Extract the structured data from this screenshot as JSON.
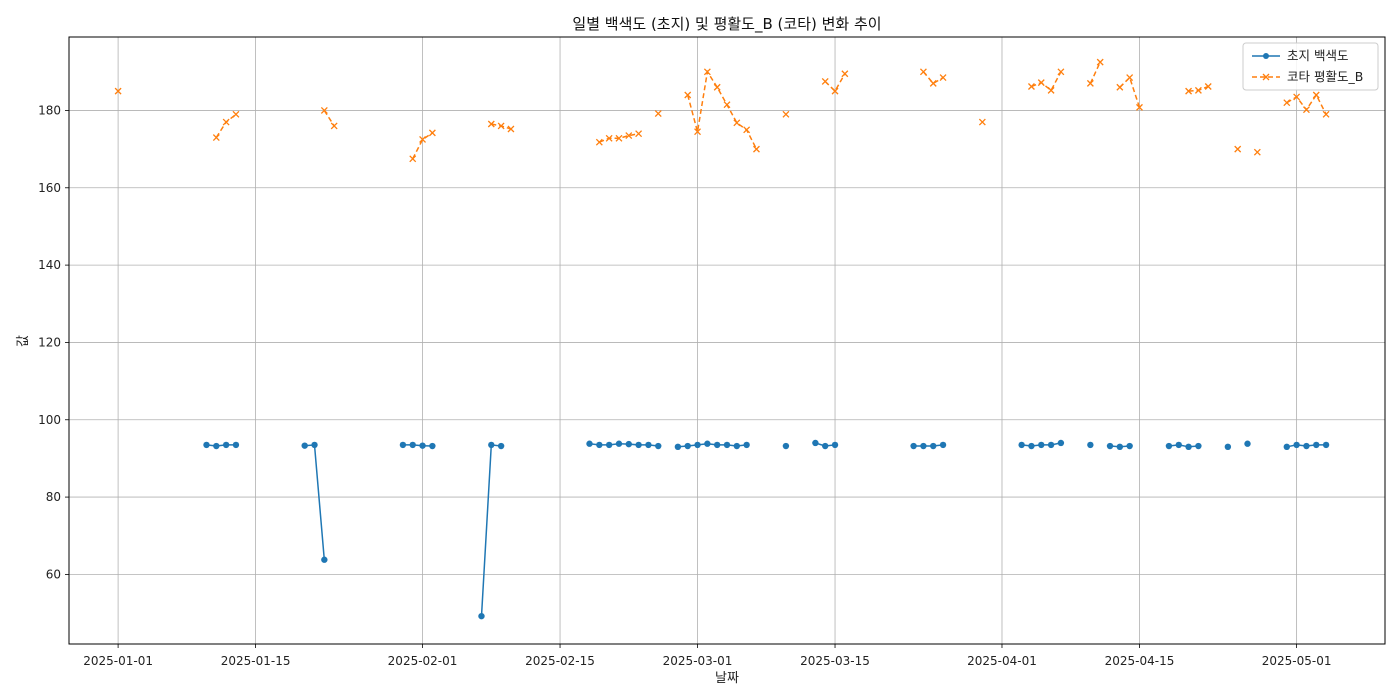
{
  "chart_data": {
    "type": "line",
    "title": "일별 백색도 (초지) 및 평활도_B (코타) 변화 추이",
    "xlabel": "날짜",
    "ylabel": "값",
    "x_tick_labels": [
      "2025-01-01",
      "2025-01-15",
      "2025-02-01",
      "2025-02-15",
      "2025-03-01",
      "2025-03-15",
      "2025-04-01",
      "2025-04-15",
      "2025-05-01"
    ],
    "x_ticks": [
      "2025-01-01",
      "2025-01-15",
      "2025-02-01",
      "2025-02-15",
      "2025-03-01",
      "2025-03-15",
      "2025-04-01",
      "2025-04-15",
      "2025-05-01"
    ],
    "x_range": [
      "2024-12-27",
      "2025-05-10"
    ],
    "y_ticks": [
      60,
      80,
      100,
      120,
      140,
      160,
      180
    ],
    "ylim": [
      42,
      199
    ],
    "grid": true,
    "legend_position": "top-right",
    "series": [
      {
        "name": "초지 백색도",
        "color": "#1f77b4",
        "style": "solid",
        "marker": "circle",
        "points": [
          [
            "2025-01-10",
            93.5
          ],
          [
            "2025-01-11",
            93.2
          ],
          [
            "2025-01-12",
            93.5
          ],
          [
            "2025-01-13",
            93.5
          ],
          [
            "2025-01-14",
            null
          ],
          [
            "2025-01-20",
            93.3
          ],
          [
            "2025-01-21",
            93.5
          ],
          [
            "2025-01-22",
            63.8
          ],
          [
            "2025-01-23",
            null
          ],
          [
            "2025-01-30",
            93.5
          ],
          [
            "2025-01-31",
            93.5
          ],
          [
            "2025-02-01",
            93.3
          ],
          [
            "2025-02-02",
            93.2
          ],
          [
            "2025-02-03",
            null
          ],
          [
            "2025-02-07",
            49.2
          ],
          [
            "2025-02-08",
            93.5
          ],
          [
            "2025-02-09",
            93.2
          ],
          [
            "2025-02-10",
            null
          ],
          [
            "2025-02-18",
            93.8
          ],
          [
            "2025-02-19",
            93.5
          ],
          [
            "2025-02-20",
            93.5
          ],
          [
            "2025-02-21",
            93.8
          ],
          [
            "2025-02-22",
            93.7
          ],
          [
            "2025-02-23",
            93.5
          ],
          [
            "2025-02-24",
            93.5
          ],
          [
            "2025-02-25",
            93.2
          ],
          [
            "2025-02-26",
            null
          ],
          [
            "2025-02-27",
            93.0
          ],
          [
            "2025-02-28",
            93.2
          ],
          [
            "2025-03-01",
            93.5
          ],
          [
            "2025-03-02",
            93.8
          ],
          [
            "2025-03-03",
            93.5
          ],
          [
            "2025-03-04",
            93.5
          ],
          [
            "2025-03-05",
            93.2
          ],
          [
            "2025-03-06",
            93.5
          ],
          [
            "2025-03-07",
            null
          ],
          [
            "2025-03-10",
            93.2
          ],
          [
            "2025-03-11",
            null
          ],
          [
            "2025-03-13",
            94.0
          ],
          [
            "2025-03-14",
            93.2
          ],
          [
            "2025-03-15",
            93.5
          ],
          [
            "2025-03-16",
            null
          ],
          [
            "2025-03-23",
            93.2
          ],
          [
            "2025-03-24",
            93.2
          ],
          [
            "2025-03-25",
            93.2
          ],
          [
            "2025-03-26",
            93.5
          ],
          [
            "2025-03-27",
            null
          ],
          [
            "2025-04-03",
            93.5
          ],
          [
            "2025-04-04",
            93.2
          ],
          [
            "2025-04-05",
            93.5
          ],
          [
            "2025-04-06",
            93.5
          ],
          [
            "2025-04-07",
            94.0
          ],
          [
            "2025-04-08",
            null
          ],
          [
            "2025-04-10",
            93.5
          ],
          [
            "2025-04-11",
            null
          ],
          [
            "2025-04-12",
            93.2
          ],
          [
            "2025-04-13",
            93.0
          ],
          [
            "2025-04-14",
            93.2
          ],
          [
            "2025-04-15",
            null
          ],
          [
            "2025-04-18",
            93.2
          ],
          [
            "2025-04-19",
            93.5
          ],
          [
            "2025-04-20",
            93.0
          ],
          [
            "2025-04-21",
            93.2
          ],
          [
            "2025-04-22",
            null
          ],
          [
            "2025-04-24",
            93.0
          ],
          [
            "2025-04-25",
            null
          ],
          [
            "2025-04-26",
            93.8
          ],
          [
            "2025-04-27",
            null
          ],
          [
            "2025-04-30",
            93.0
          ],
          [
            "2025-05-01",
            93.5
          ],
          [
            "2025-05-02",
            93.2
          ],
          [
            "2025-05-03",
            93.5
          ],
          [
            "2025-05-04",
            93.5
          ]
        ]
      },
      {
        "name": "코타 평활도_B",
        "color": "#ff7f0e",
        "style": "dashed",
        "marker": "x",
        "points": [
          [
            "2025-01-01",
            185.0
          ],
          [
            "2025-01-02",
            null
          ],
          [
            "2025-01-11",
            173.0
          ],
          [
            "2025-01-12",
            177.0
          ],
          [
            "2025-01-13",
            179.0
          ],
          [
            "2025-01-14",
            null
          ],
          [
            "2025-01-22",
            180.0
          ],
          [
            "2025-01-23",
            176.0
          ],
          [
            "2025-01-24",
            null
          ],
          [
            "2025-01-31",
            167.5
          ],
          [
            "2025-02-01",
            172.5
          ],
          [
            "2025-02-02",
            174.2
          ],
          [
            "2025-02-03",
            null
          ],
          [
            "2025-02-08",
            176.5
          ],
          [
            "2025-02-09",
            176.0
          ],
          [
            "2025-02-10",
            175.2
          ],
          [
            "2025-02-11",
            null
          ],
          [
            "2025-02-19",
            171.8
          ],
          [
            "2025-02-20",
            172.8
          ],
          [
            "2025-02-21",
            172.8
          ],
          [
            "2025-02-22",
            173.5
          ],
          [
            "2025-02-23",
            174.0
          ],
          [
            "2025-02-24",
            null
          ],
          [
            "2025-02-25",
            179.2
          ],
          [
            "2025-02-26",
            null
          ],
          [
            "2025-02-28",
            184.0
          ],
          [
            "2025-03-01",
            174.5
          ],
          [
            "2025-03-02",
            190.0
          ],
          [
            "2025-03-03",
            186.0
          ],
          [
            "2025-03-04",
            181.5
          ],
          [
            "2025-03-05",
            176.8
          ],
          [
            "2025-03-06",
            175.0
          ],
          [
            "2025-03-07",
            170.0
          ],
          [
            "2025-03-08",
            null
          ],
          [
            "2025-03-10",
            179.0
          ],
          [
            "2025-03-11",
            null
          ],
          [
            "2025-03-14",
            187.5
          ],
          [
            "2025-03-15",
            185.0
          ],
          [
            "2025-03-16",
            189.5
          ],
          [
            "2025-03-17",
            null
          ],
          [
            "2025-03-24",
            190.0
          ],
          [
            "2025-03-25",
            187.0
          ],
          [
            "2025-03-26",
            188.5
          ],
          [
            "2025-03-27",
            null
          ],
          [
            "2025-03-30",
            177.0
          ],
          [
            "2025-03-31",
            null
          ],
          [
            "2025-04-04",
            186.2
          ],
          [
            "2025-04-05",
            187.2
          ],
          [
            "2025-04-06",
            185.2
          ],
          [
            "2025-04-07",
            190.0
          ],
          [
            "2025-04-08",
            null
          ],
          [
            "2025-04-10",
            187.0
          ],
          [
            "2025-04-11",
            192.5
          ],
          [
            "2025-04-12",
            null
          ],
          [
            "2025-04-13",
            186.0
          ],
          [
            "2025-04-14",
            188.5
          ],
          [
            "2025-04-15",
            180.8
          ],
          [
            "2025-04-16",
            null
          ],
          [
            "2025-04-20",
            185.0
          ],
          [
            "2025-04-21",
            185.2
          ],
          [
            "2025-04-22",
            186.2
          ],
          [
            "2025-04-23",
            null
          ],
          [
            "2025-04-25",
            170.0
          ],
          [
            "2025-04-26",
            null
          ],
          [
            "2025-04-27",
            169.2
          ],
          [
            "2025-04-28",
            null
          ],
          [
            "2025-04-30",
            182.0
          ],
          [
            "2025-05-01",
            183.5
          ],
          [
            "2025-05-02",
            180.2
          ],
          [
            "2025-05-03",
            184.0
          ],
          [
            "2025-05-04",
            179.0
          ]
        ]
      }
    ]
  }
}
